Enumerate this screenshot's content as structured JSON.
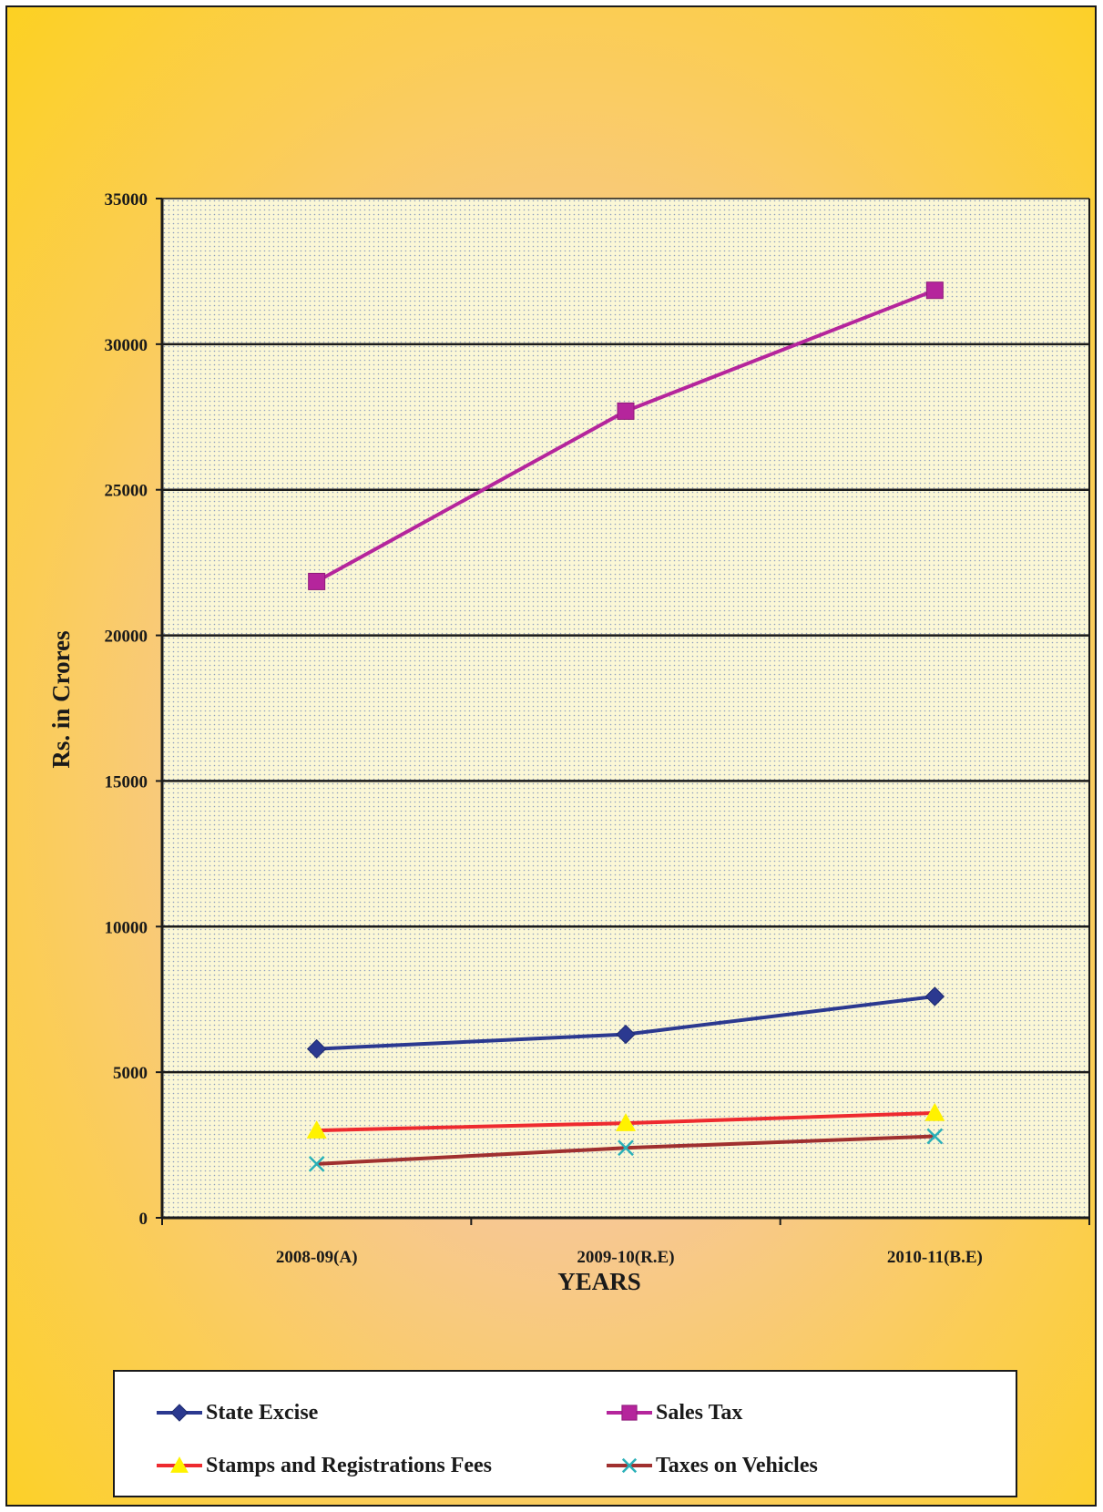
{
  "chart_data": {
    "type": "line",
    "title": "",
    "xlabel": "YEARS",
    "ylabel": "Rs. in Crores",
    "categories": [
      "2008-09(A)",
      "2009-10(R.E)",
      "2010-11(B.E)"
    ],
    "ylim": [
      0,
      35000
    ],
    "yticks": [
      0,
      5000,
      10000,
      15000,
      20000,
      25000,
      30000,
      35000
    ],
    "grid": true,
    "legend_position": "bottom",
    "series": [
      {
        "name": "State Excise",
        "values": [
          5800,
          6300,
          7600
        ],
        "color": "#2b3990",
        "marker": "diamond"
      },
      {
        "name": "Sales Tax",
        "values": [
          21850,
          27700,
          31850
        ],
        "color": "#b5259c",
        "marker": "square"
      },
      {
        "name": "Stamps and Registrations Fees",
        "values": [
          3000,
          3250,
          3600
        ],
        "color": "#ee2a2f",
        "marker": "triangle",
        "marker_color": "#fff200"
      },
      {
        "name": "Taxes on  Vehicles",
        "values": [
          1850,
          2400,
          2800
        ],
        "color": "#a0302f",
        "marker": "x",
        "marker_color": "#2ab0b8"
      }
    ]
  }
}
